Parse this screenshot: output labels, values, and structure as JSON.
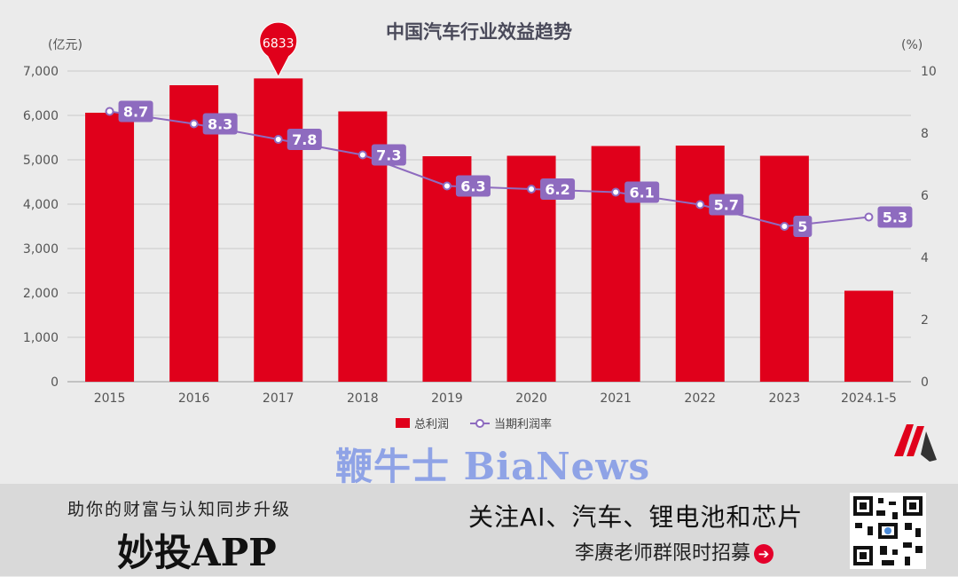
{
  "chart_data": {
    "type": "bar",
    "title": "中国汽车行业效益趋势",
    "left_unit": "(亿元)",
    "right_unit": "(%)",
    "categories": [
      "2015",
      "2016",
      "2017",
      "2018",
      "2019",
      "2020",
      "2021",
      "2022",
      "2023",
      "2024.1-5"
    ],
    "left_axis": {
      "min": 0,
      "max": 7000,
      "ticks": [
        "0",
        "1,000",
        "2,000",
        "3,000",
        "4,000",
        "5,000",
        "6,000",
        "7,000"
      ]
    },
    "right_axis": {
      "min": 0,
      "max": 10,
      "ticks": [
        "0",
        "2",
        "4",
        "6",
        "8",
        "10"
      ]
    },
    "series": [
      {
        "name": "总利润",
        "type": "bar",
        "axis": "left",
        "color": "#e0001b",
        "values": [
          6060,
          6680,
          6833,
          6090,
          5080,
          5090,
          5310,
          5320,
          5090,
          2050
        ]
      },
      {
        "name": "当期利润率",
        "type": "line",
        "axis": "right",
        "color": "#8e6bbf",
        "values": [
          8.7,
          8.3,
          7.8,
          7.3,
          6.3,
          6.2,
          6.1,
          5.7,
          5,
          5.3
        ],
        "labels": [
          "8.7",
          "8.3",
          "7.8",
          "7.3",
          "6.3",
          "6.2",
          "6.1",
          "5.7",
          "5",
          "5.3"
        ]
      }
    ],
    "max_callout": {
      "category": "2017",
      "label": "6833"
    },
    "grid": true,
    "legend_position": "bottom"
  },
  "watermark": "鞭牛士 BiaNews",
  "banner": {
    "slogan": "助你的财富与认知同步升级",
    "app_name": "妙投APP",
    "topics": "关注AI、汽车、锂电池和芯片",
    "recruit": "李赓老师群限时招募"
  },
  "colors": {
    "bar": "#e0001b",
    "line": "#8e6bbf",
    "background": "#ebebeb",
    "grid": "#c8c8c8"
  },
  "icons": {
    "logo": "m-logo-icon",
    "arrow": "arrow-right-circle-icon",
    "qr": "qr-code-icon"
  }
}
